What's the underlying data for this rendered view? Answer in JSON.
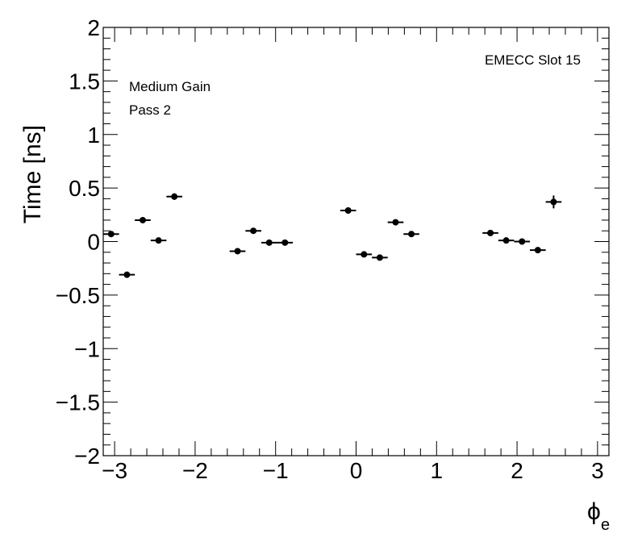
{
  "chart_data": {
    "type": "scatter",
    "xlabel_main": "ϕ",
    "xlabel_sub": "e",
    "ylabel": "Time [ns]",
    "xlim": [
      -3.14159,
      3.14159
    ],
    "ylim": [
      -2,
      2
    ],
    "x_ticks": [
      -3,
      -2,
      -1,
      0,
      1,
      2,
      3
    ],
    "x_tick_labels": [
      "−3",
      "−2",
      "−1",
      "0",
      "1",
      "2",
      "3"
    ],
    "y_ticks": [
      -2,
      -1.5,
      -1,
      -0.5,
      0,
      0.5,
      1,
      1.5,
      2
    ],
    "y_tick_labels": [
      "−2",
      "−1.5",
      "−1",
      "−0.5",
      "0",
      "0.5",
      "1",
      "1.5",
      "2"
    ],
    "annotations": {
      "top_right": "EMECC Slot 15",
      "top_left_line1": "Medium Gain",
      "top_left_line2": "Pass 2"
    },
    "x_error_halfwidth": 0.0982,
    "points": [
      {
        "x": -3.0434,
        "y": 0.07,
        "yerr": 0.02
      },
      {
        "x": -2.847,
        "y": -0.31,
        "yerr": 0.02
      },
      {
        "x": -2.6507,
        "y": 0.2,
        "yerr": 0.02
      },
      {
        "x": -2.4543,
        "y": 0.01,
        "yerr": 0.02
      },
      {
        "x": -2.258,
        "y": 0.42,
        "yerr": 0.03
      },
      {
        "x": -1.4726,
        "y": -0.09,
        "yerr": 0.02
      },
      {
        "x": -1.2763,
        "y": 0.1,
        "yerr": 0.02
      },
      {
        "x": -1.0799,
        "y": -0.01,
        "yerr": 0.02
      },
      {
        "x": -0.8836,
        "y": -0.01,
        "yerr": 0.02
      },
      {
        "x": -0.0982,
        "y": 0.29,
        "yerr": 0.03
      },
      {
        "x": 0.0982,
        "y": -0.12,
        "yerr": 0.02
      },
      {
        "x": 0.2945,
        "y": -0.15,
        "yerr": 0.02
      },
      {
        "x": 0.4909,
        "y": 0.18,
        "yerr": 0.02
      },
      {
        "x": 0.6872,
        "y": 0.07,
        "yerr": 0.02
      },
      {
        "x": 1.669,
        "y": 0.08,
        "yerr": 0.02
      },
      {
        "x": 1.8653,
        "y": 0.01,
        "yerr": 0.02
      },
      {
        "x": 2.0617,
        "y": 0.0,
        "yerr": 0.02
      },
      {
        "x": 2.258,
        "y": -0.08,
        "yerr": 0.02
      },
      {
        "x": 2.4543,
        "y": 0.37,
        "yerr": 0.06
      }
    ]
  }
}
